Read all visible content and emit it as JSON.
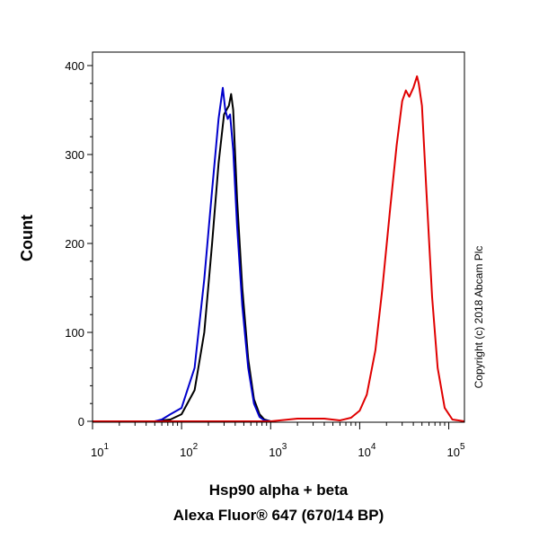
{
  "chart_data": {
    "type": "line",
    "ylabel": "Count",
    "xlabel_line1": "Hsp90 alpha + beta",
    "xlabel_line2": "Alexa Fluor® 647 (670/14 BP)",
    "copyright": "Copyright (c) 2018 Abcam Plc",
    "x_scale": "log",
    "xlim": [
      10,
      150000
    ],
    "ylim": [
      0,
      400
    ],
    "y_ticks": [
      0,
      100,
      200,
      300,
      400
    ],
    "x_ticks": [
      {
        "value": 10,
        "base": "10",
        "exp": "1"
      },
      {
        "value": 100,
        "base": "10",
        "exp": "2"
      },
      {
        "value": 1000,
        "base": "10",
        "exp": "3"
      },
      {
        "value": 10000,
        "base": "10",
        "exp": "4"
      },
      {
        "value": 100000,
        "base": "10",
        "exp": "5"
      }
    ],
    "grid": false,
    "series": [
      {
        "color": "#000000",
        "x": [
          50,
          75,
          100,
          140,
          180,
          220,
          260,
          300,
          340,
          360,
          380,
          420,
          480,
          560,
          650,
          750,
          850,
          1000
        ],
        "y": [
          0,
          2,
          8,
          35,
          100,
          200,
          290,
          345,
          355,
          368,
          350,
          250,
          150,
          70,
          25,
          8,
          2,
          0
        ]
      },
      {
        "color": "#0000cc",
        "x": [
          50,
          60,
          75,
          100,
          140,
          180,
          220,
          260,
          290,
          310,
          330,
          350,
          380,
          420,
          480,
          560,
          650,
          750,
          850,
          1000
        ],
        "y": [
          0,
          2,
          8,
          15,
          60,
          160,
          260,
          340,
          375,
          350,
          340,
          345,
          305,
          220,
          130,
          60,
          20,
          5,
          1,
          0
        ]
      },
      {
        "color": "#e00000",
        "x": [
          10,
          1000,
          2000,
          4000,
          6000,
          8000,
          10000,
          12000,
          15000,
          18000,
          22000,
          26000,
          30000,
          33000,
          36000,
          40000,
          44000,
          46000,
          50000,
          56000,
          65000,
          75000,
          90000,
          110000,
          150000
        ],
        "y": [
          0,
          0,
          3,
          3,
          1,
          4,
          12,
          30,
          80,
          150,
          240,
          310,
          360,
          372,
          365,
          375,
          388,
          380,
          355,
          260,
          140,
          60,
          15,
          2,
          0
        ]
      }
    ]
  }
}
